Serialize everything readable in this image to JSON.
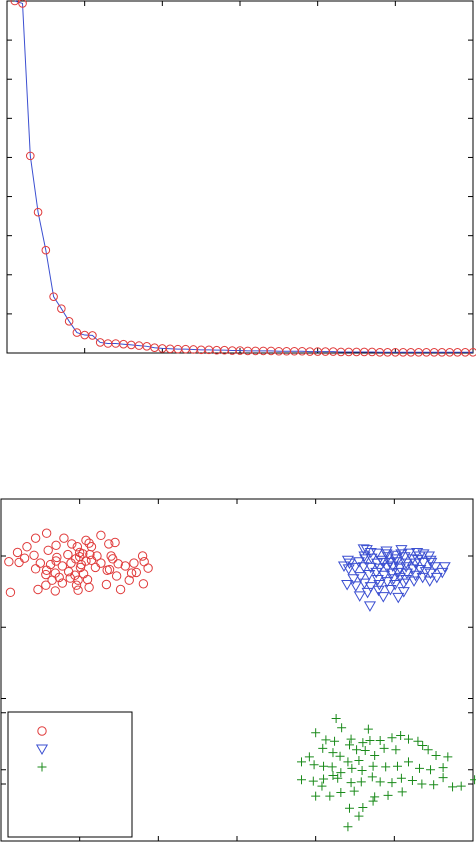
{
  "chart_data": [
    {
      "type": "line",
      "title": "",
      "xlabel": "",
      "ylabel": "",
      "xlim": [
        0,
        60
      ],
      "ylim": [
        0,
        1
      ],
      "grid": false,
      "x": [
        1,
        2,
        3,
        4,
        5,
        6,
        7,
        8,
        9,
        10,
        11,
        12,
        13,
        14,
        15,
        16,
        17,
        18,
        19,
        20,
        21,
        22,
        23,
        24,
        25,
        26,
        27,
        28,
        29,
        30,
        31,
        32,
        33,
        34,
        35,
        36,
        37,
        38,
        39,
        40,
        41,
        42,
        43,
        44,
        45,
        46,
        47,
        48,
        49,
        50,
        51,
        52,
        53,
        54,
        55,
        56,
        57,
        58,
        59,
        60
      ],
      "series": [
        {
          "line_color": "#3b4fd1",
          "marker": "circle",
          "marker_color": "#e03a3a",
          "values": [
            1.0,
            0.993,
            0.56,
            0.4,
            0.292,
            0.16,
            0.126,
            0.09,
            0.058,
            0.051,
            0.05,
            0.03,
            0.027,
            0.027,
            0.025,
            0.023,
            0.021,
            0.019,
            0.015,
            0.013,
            0.012,
            0.011,
            0.011,
            0.01,
            0.009,
            0.009,
            0.008,
            0.008,
            0.007,
            0.007,
            0.006,
            0.006,
            0.006,
            0.006,
            0.005,
            0.005,
            0.005,
            0.005,
            0.004,
            0.004,
            0.004,
            0.004,
            0.003,
            0.003,
            0.003,
            0.003,
            0.003,
            0.002,
            0.002,
            0.002,
            0.002,
            0.002,
            0.002,
            0.002,
            0.002,
            0.002,
            0.002,
            0.002,
            0.002,
            0.002
          ]
        }
      ]
    },
    {
      "type": "scatter",
      "title": "",
      "xlabel": "",
      "ylabel": "",
      "xlim": [
        -3,
        3
      ],
      "ylim": [
        -3,
        1.8
      ],
      "grid": false,
      "legend": {
        "placement": "bottom-left",
        "entries": [
          "",
          "",
          ""
        ]
      },
      "series": [
        {
          "marker": "circle",
          "color": "#e03a3a",
          "points": [
            [
              -2.4,
              1.08
            ],
            [
              -2.0,
              1.05
            ],
            [
              -2.03,
              1.13
            ],
            [
              -2.2,
              1.25
            ],
            [
              -2.3,
              1.15
            ],
            [
              -2.1,
              1.17
            ],
            [
              -1.85,
              1.13
            ],
            [
              -1.6,
              1.0
            ],
            [
              -1.78,
              1.0
            ],
            [
              -1.92,
              0.93
            ],
            [
              -1.96,
              1.03
            ],
            [
              -2.15,
              1.02
            ],
            [
              -2.29,
              0.98
            ],
            [
              -2.3,
              0.93
            ],
            [
              -2.5,
              0.9
            ],
            [
              -2.77,
              0.91
            ],
            [
              -2.9,
              0.92
            ],
            [
              -2.7,
              0.97
            ],
            [
              -2.58,
              1.01
            ],
            [
              -2.79,
              1.05
            ],
            [
              -2.42,
              0.8
            ],
            [
              -2.37,
              0.88
            ],
            [
              -2.22,
              0.86
            ],
            [
              -2.11,
              0.9
            ],
            [
              -1.99,
              0.84
            ],
            [
              -1.8,
              0.84
            ],
            [
              -1.95,
              0.75
            ],
            [
              -2.02,
              0.66
            ],
            [
              -2.12,
              0.69
            ],
            [
              -2.26,
              0.7
            ],
            [
              -2.31,
              0.76
            ],
            [
              -2.43,
              0.74
            ],
            [
              -2.56,
              0.82
            ],
            [
              -1.62,
              0.81
            ],
            [
              -1.42,
              0.86
            ],
            [
              -1.31,
              0.9
            ],
            [
              -1.18,
              0.92
            ],
            [
              -1.13,
              0.83
            ],
            [
              -1.19,
              0.61
            ],
            [
              -1.37,
              0.66
            ],
            [
              -1.34,
              0.76
            ],
            [
              -1.2,
              1.0
            ],
            [
              -1.28,
              0.77
            ],
            [
              -2.06,
              0.73
            ],
            [
              -2.14,
              0.78
            ],
            [
              -1.9,
              0.67
            ],
            [
              -2.04,
              0.59
            ],
            [
              -2.22,
              0.62
            ],
            [
              -2.35,
              0.66
            ],
            [
              -1.98,
              0.88
            ],
            [
              -1.85,
              0.94
            ],
            [
              -1.88,
              1.18
            ],
            [
              -1.92,
              1.22
            ],
            [
              -1.73,
              1.29
            ],
            [
              -1.63,
              1.17
            ],
            [
              -1.55,
              1.19
            ],
            [
              -1.58,
              0.96
            ],
            [
              -1.51,
              0.89
            ],
            [
              -2.42,
              1.32
            ],
            [
              -2.56,
              1.25
            ],
            [
              -2.67,
              1.13
            ],
            [
              -2.88,
              0.49
            ],
            [
              -2.53,
              0.53
            ],
            [
              -2.43,
              0.59
            ],
            [
              -2.31,
              0.51
            ],
            [
              -2.02,
              0.52
            ],
            [
              -1.88,
              0.56
            ],
            [
              -1.66,
              0.6
            ],
            [
              -1.48,
              0.53
            ],
            [
              -1.53,
              0.72
            ],
            [
              -1.65,
              0.8
            ],
            [
              -1.73,
              0.9
            ],
            [
              -2.0,
              0.99
            ],
            [
              -2.05,
              0.96
            ],
            [
              -1.87,
              1.02
            ]
          ]
        },
        {
          "marker": "triangle-down",
          "color": "#3b4fd1",
          "points": [
            [
              1.65,
              1.09
            ],
            [
              1.78,
              1.04
            ],
            [
              1.9,
              1.03
            ],
            [
              2.01,
              1.01
            ],
            [
              2.09,
              1.03
            ],
            [
              2.19,
              1.04
            ],
            [
              2.29,
              1.05
            ],
            [
              2.37,
              1.03
            ],
            [
              2.44,
              1.0
            ],
            [
              2.32,
              1.0
            ],
            [
              2.23,
              0.96
            ],
            [
              2.13,
              0.99
            ],
            [
              2.02,
              0.96
            ],
            [
              1.92,
              0.99
            ],
            [
              1.84,
              0.94
            ],
            [
              1.78,
              0.9
            ],
            [
              1.7,
              0.84
            ],
            [
              1.61,
              0.85
            ],
            [
              1.5,
              0.84
            ],
            [
              1.42,
              0.82
            ],
            [
              1.36,
              0.86
            ],
            [
              1.43,
              0.9
            ],
            [
              1.55,
              0.92
            ],
            [
              1.63,
              0.96
            ],
            [
              1.71,
              0.97
            ],
            [
              1.81,
              0.83
            ],
            [
              1.91,
              0.84
            ],
            [
              1.98,
              0.86
            ],
            [
              2.07,
              0.83
            ],
            [
              2.15,
              0.85
            ],
            [
              2.24,
              0.82
            ],
            [
              2.33,
              0.81
            ],
            [
              2.4,
              0.78
            ],
            [
              2.46,
              0.76
            ],
            [
              2.54,
              0.7
            ],
            [
              2.61,
              0.77
            ],
            [
              2.64,
              0.85
            ],
            [
              2.52,
              0.85
            ],
            [
              2.47,
              0.91
            ],
            [
              2.37,
              0.91
            ],
            [
              2.27,
              0.9
            ],
            [
              2.15,
              0.9
            ],
            [
              2.03,
              0.92
            ],
            [
              1.94,
              0.91
            ],
            [
              1.86,
              0.91
            ],
            [
              1.97,
              0.76
            ],
            [
              2.07,
              0.7
            ],
            [
              2.16,
              0.76
            ],
            [
              2.27,
              0.73
            ],
            [
              2.36,
              0.7
            ],
            [
              2.45,
              0.65
            ],
            [
              2.25,
              0.65
            ],
            [
              2.12,
              0.62
            ],
            [
              2.01,
              0.6
            ],
            [
              1.91,
              0.64
            ],
            [
              1.81,
              0.6
            ],
            [
              1.7,
              0.57
            ],
            [
              1.62,
              0.62
            ],
            [
              1.51,
              0.58
            ],
            [
              1.4,
              0.6
            ],
            [
              1.48,
              0.68
            ],
            [
              1.57,
              0.71
            ],
            [
              1.68,
              0.74
            ],
            [
              1.77,
              0.77
            ],
            [
              1.87,
              0.73
            ],
            [
              1.99,
              0.68
            ],
            [
              2.12,
              0.5
            ],
            [
              1.95,
              0.53
            ],
            [
              1.8,
              0.52
            ],
            [
              1.66,
              0.49
            ],
            [
              1.56,
              0.44
            ],
            [
              1.86,
              0.43
            ],
            [
              2.05,
              0.42
            ],
            [
              1.69,
              0.3
            ],
            [
              1.61,
              1.1
            ],
            [
              1.7,
              1.05
            ],
            [
              2.09,
              1.09
            ],
            [
              2.46,
              0.94
            ],
            [
              1.41,
              0.94
            ],
            [
              1.79,
              0.67
            ],
            [
              2.05,
              0.77
            ],
            [
              2.15,
              0.67
            ],
            [
              2.3,
              0.95
            ],
            [
              1.9,
              1.07
            ],
            [
              1.62,
              1.0
            ]
          ]
        },
        {
          "marker": "plus",
          "color": "#1a8a1a",
          "points": [
            [
              1.43,
              -1.65
            ],
            [
              1.52,
              -1.72
            ],
            [
              1.6,
              -1.62
            ],
            [
              1.69,
              -1.59
            ],
            [
              1.82,
              -1.59
            ],
            [
              1.97,
              -1.55
            ],
            [
              2.08,
              -1.52
            ],
            [
              2.18,
              -1.57
            ],
            [
              2.3,
              -1.6
            ],
            [
              2.36,
              -1.66
            ],
            [
              2.43,
              -1.72
            ],
            [
              2.53,
              -1.8
            ],
            [
              2.68,
              -1.82
            ],
            [
              2.46,
              -2.0
            ],
            [
              2.32,
              -1.98
            ],
            [
              2.18,
              -1.89
            ],
            [
              2.04,
              -1.95
            ],
            [
              1.89,
              -1.96
            ],
            [
              1.73,
              -1.95
            ],
            [
              1.59,
              -2.01
            ],
            [
              1.46,
              -1.98
            ],
            [
              1.32,
              -2.04
            ],
            [
              1.21,
              -1.96
            ],
            [
              1.1,
              -1.95
            ],
            [
              0.98,
              -1.93
            ],
            [
              0.82,
              -1.89
            ],
            [
              0.82,
              -2.14
            ],
            [
              0.97,
              -2.16
            ],
            [
              1.1,
              -2.13
            ],
            [
              1.28,
              -2.12
            ],
            [
              1.45,
              -2.18
            ],
            [
              1.58,
              -2.17
            ],
            [
              1.72,
              -2.1
            ],
            [
              1.82,
              -2.17
            ],
            [
              1.97,
              -2.18
            ],
            [
              2.09,
              -2.12
            ],
            [
              2.23,
              -2.15
            ],
            [
              2.35,
              -2.2
            ],
            [
              2.5,
              -2.21
            ],
            [
              2.62,
              -2.11
            ],
            [
              2.74,
              -2.24
            ],
            [
              2.85,
              -2.23
            ],
            [
              3.02,
              -2.14
            ],
            [
              2.1,
              -2.31
            ],
            [
              1.92,
              -2.36
            ],
            [
              1.75,
              -2.38
            ],
            [
              1.49,
              -2.3
            ],
            [
              1.32,
              -2.32
            ],
            [
              1.18,
              -2.37
            ],
            [
              1.0,
              -2.37
            ],
            [
              1.43,
              -2.54
            ],
            [
              1.6,
              -2.53
            ],
            [
              1.73,
              -2.44
            ],
            [
              1.55,
              -2.65
            ],
            [
              1.41,
              -2.8
            ],
            [
              1.67,
              -1.43
            ],
            [
              1.33,
              -1.41
            ],
            [
              1.0,
              -1.48
            ],
            [
              0.92,
              -1.82
            ],
            [
              1.75,
              -1.8
            ],
            [
              1.87,
              -1.7
            ],
            [
              2.02,
              -1.72
            ],
            [
              1.31,
              -1.81
            ],
            [
              1.41,
              -1.89
            ],
            [
              1.55,
              -1.87
            ],
            [
              1.22,
              -1.76
            ],
            [
              1.09,
              -1.7
            ],
            [
              1.13,
              -1.58
            ],
            [
              1.24,
              -1.6
            ],
            [
              1.26,
              -1.28
            ],
            [
              1.08,
              -2.23
            ],
            [
              2.62,
              -1.97
            ],
            [
              1.22,
              -2.08
            ],
            [
              1.45,
              -1.57
            ],
            [
              1.63,
              -1.73
            ]
          ]
        }
      ]
    }
  ]
}
